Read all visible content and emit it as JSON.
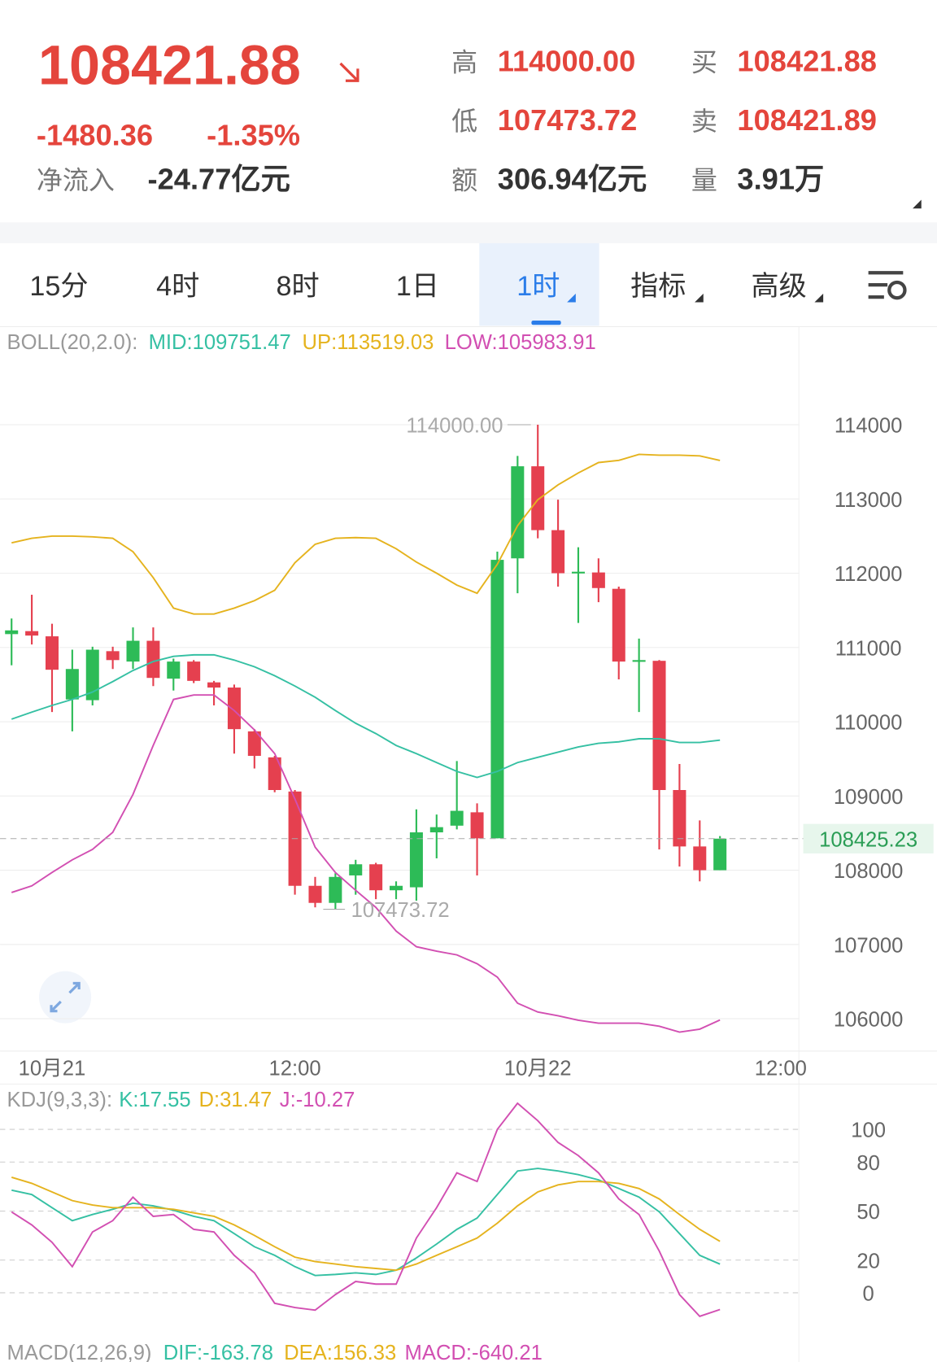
{
  "header": {
    "price": "108421.88",
    "change": "-1480.36",
    "change_pct": "-1.35%",
    "net_inflow_label": "净流入",
    "net_inflow": "-24.77亿元",
    "stats": [
      {
        "label": "高",
        "value": "114000.00"
      },
      {
        "label": "低",
        "value": "107473.72"
      },
      {
        "label": "额",
        "value": "306.94亿元"
      },
      {
        "label": "买",
        "value": "108421.88"
      },
      {
        "label": "卖",
        "value": "108421.89"
      },
      {
        "label": "量",
        "value": "3.91万"
      }
    ]
  },
  "tabs": [
    "15分",
    "4时",
    "8时",
    "1日",
    "1时",
    "指标",
    "高级"
  ],
  "macd": {
    "title": "MACD(12,26,9)",
    "labels": [
      "DIF:-163.78",
      "DEA:156.33",
      "MACD:-640.21"
    ]
  },
  "chart_data": [
    {
      "type": "candlestick",
      "title": "BOLL(20,2.0):",
      "x": [
        -2,
        -1,
        0,
        1,
        2,
        3,
        4,
        5,
        6,
        7,
        8,
        9,
        10,
        11,
        12,
        13,
        14,
        15,
        16,
        17,
        18,
        19,
        20,
        21,
        22,
        23,
        24,
        25,
        26,
        27,
        28,
        29,
        30,
        31,
        32,
        33
      ],
      "xlim": [
        -2.57,
        36.9
      ],
      "xticks": [
        {
          "value": 0,
          "label": "10月21"
        },
        {
          "value": 12,
          "label": "12:00"
        },
        {
          "value": 24,
          "label": "10月22"
        },
        {
          "value": 36,
          "label": "12:00"
        }
      ],
      "ylim": [
        105600,
        114900
      ],
      "yticks": [
        106000,
        107000,
        108000,
        109000,
        110000,
        111000,
        112000,
        113000,
        114000
      ],
      "grid": true,
      "up_color": "#2dbb57",
      "down_color": "#e5404f",
      "open": [
        111180,
        111220,
        111150,
        110300,
        110290,
        110950,
        110810,
        111090,
        110580,
        110810,
        110530,
        110460,
        109870,
        109520,
        109060,
        107790,
        107560,
        107930,
        108080,
        107730,
        107770,
        108510,
        108600,
        108780,
        108430,
        112200,
        113440,
        112580,
        112000,
        112010,
        111790,
        110810,
        110820,
        109080,
        108320,
        108000
      ],
      "high": [
        111390,
        111710,
        111320,
        110970,
        111010,
        111010,
        111270,
        111270,
        110850,
        110830,
        110550,
        110500,
        109900,
        109540,
        109080,
        107910,
        107960,
        108140,
        108100,
        107850,
        108820,
        108750,
        109470,
        108900,
        112290,
        113580,
        114000,
        112990,
        112350,
        112200,
        111820,
        111120,
        110830,
        109430,
        108670,
        108460
      ],
      "low": [
        110760,
        111040,
        110130,
        109870,
        110220,
        110710,
        110710,
        110480,
        110420,
        110520,
        110220,
        109570,
        109370,
        109050,
        107670,
        107500,
        107473.72,
        107670,
        107610,
        107610,
        107590,
        108160,
        108550,
        107930,
        108430,
        111730,
        112470,
        111820,
        111330,
        111610,
        110570,
        110130,
        108280,
        108050,
        107850,
        108000
      ],
      "close": [
        111230,
        111160,
        110700,
        110710,
        110970,
        110830,
        111090,
        110590,
        110810,
        110550,
        110460,
        109900,
        109540,
        109080,
        107790,
        107560,
        107910,
        108080,
        107730,
        107790,
        108510,
        108580,
        108800,
        108430,
        112180,
        113440,
        112580,
        112000,
        112020,
        111800,
        110810,
        110830,
        109080,
        108320,
        108000,
        108425.23
      ],
      "high_label": "114000.00",
      "low_label": "107473.72",
      "last_label": "108425.23",
      "series": [
        {
          "label": "MID:109751.47",
          "color": "#35c0a3",
          "values": [
            110035,
            110130,
            110220,
            110300,
            110400,
            110540,
            110690,
            110810,
            110880,
            110900,
            110900,
            110830,
            110740,
            110620,
            110480,
            110330,
            110150,
            109980,
            109840,
            109680,
            109570,
            109450,
            109330,
            109250,
            109330,
            109450,
            109520,
            109590,
            109660,
            109710,
            109730,
            109770,
            109770,
            109720,
            109720,
            109751.47
          ]
        },
        {
          "label": "UP:113519.03",
          "color": "#e5b31e",
          "values": [
            112410,
            112470,
            112500,
            112500,
            112490,
            112470,
            112290,
            111940,
            111530,
            111450,
            111450,
            111530,
            111630,
            111770,
            112140,
            112390,
            112470,
            112480,
            112470,
            112330,
            112150,
            112000,
            111840,
            111730,
            112120,
            112640,
            112990,
            113190,
            113350,
            113490,
            113520,
            113600,
            113590,
            113590,
            113580,
            113519.03
          ]
        },
        {
          "label": "LOW:105983.91",
          "color": "#d24fb2",
          "values": [
            107700,
            107790,
            107970,
            108140,
            108280,
            108510,
            109020,
            109680,
            110300,
            110360,
            110360,
            110150,
            109890,
            109570,
            108960,
            108310,
            107970,
            107730,
            107500,
            107180,
            106970,
            106910,
            106860,
            106740,
            106560,
            106210,
            106090,
            106040,
            105980,
            105940,
            105940,
            105940,
            105900,
            105820,
            105860,
            105983.91
          ]
        }
      ]
    },
    {
      "type": "line",
      "title": "KDJ(9,3,3):",
      "x": [
        -2,
        -1,
        0,
        1,
        2,
        3,
        4,
        5,
        6,
        7,
        8,
        9,
        10,
        11,
        12,
        13,
        14,
        15,
        16,
        17,
        18,
        19,
        20,
        21,
        22,
        23,
        24,
        25,
        26,
        27,
        28,
        29,
        30,
        31,
        32,
        33
      ],
      "xlim": [
        -2.57,
        36.9
      ],
      "ylim": [
        -28,
        124
      ],
      "yticks": [
        0,
        20,
        50,
        80,
        100
      ],
      "grid": true,
      "series": [
        {
          "label": "K:17.55",
          "color": "#35c0a3",
          "values": [
            62.8,
            60.1,
            52.1,
            44.1,
            47.9,
            51.1,
            54.8,
            53.2,
            50.5,
            46.8,
            44.1,
            36.2,
            28.2,
            22.9,
            16.0,
            10.6,
            11.2,
            12.2,
            11.2,
            13.8,
            21.3,
            29.8,
            38.8,
            45.7,
            60.1,
            74.5,
            76.1,
            74.5,
            72.3,
            69.1,
            63.8,
            58.5,
            49.5,
            36.2,
            22.9,
            17.55
          ]
        },
        {
          "label": "D:31.47",
          "color": "#e5b31e",
          "values": [
            70.7,
            67.0,
            61.7,
            56.4,
            53.7,
            52.1,
            52.1,
            52.1,
            51.1,
            48.9,
            46.8,
            41.5,
            35.1,
            28.2,
            21.8,
            19.1,
            17.6,
            16.0,
            14.9,
            13.8,
            17.6,
            22.9,
            28.2,
            33.5,
            42.6,
            53.2,
            61.7,
            66.0,
            68.1,
            68.1,
            67.0,
            63.8,
            57.4,
            47.9,
            38.8,
            31.47
          ]
        },
        {
          "label": "J:-10.27",
          "color": "#d24fb2",
          "values": [
            49.5,
            41.5,
            30.9,
            16.0,
            37.2,
            44.1,
            58.5,
            46.8,
            47.9,
            38.8,
            37.2,
            22.9,
            12.2,
            -6.4,
            -9.0,
            -10.6,
            -1.1,
            6.9,
            5.3,
            5.3,
            33.5,
            52.1,
            73.4,
            68.1,
            100,
            116.0,
            105.3,
            92.0,
            84.0,
            73.4,
            57.4,
            47.9,
            25.5,
            -1.1,
            -14.4,
            -10.27
          ]
        }
      ]
    }
  ]
}
